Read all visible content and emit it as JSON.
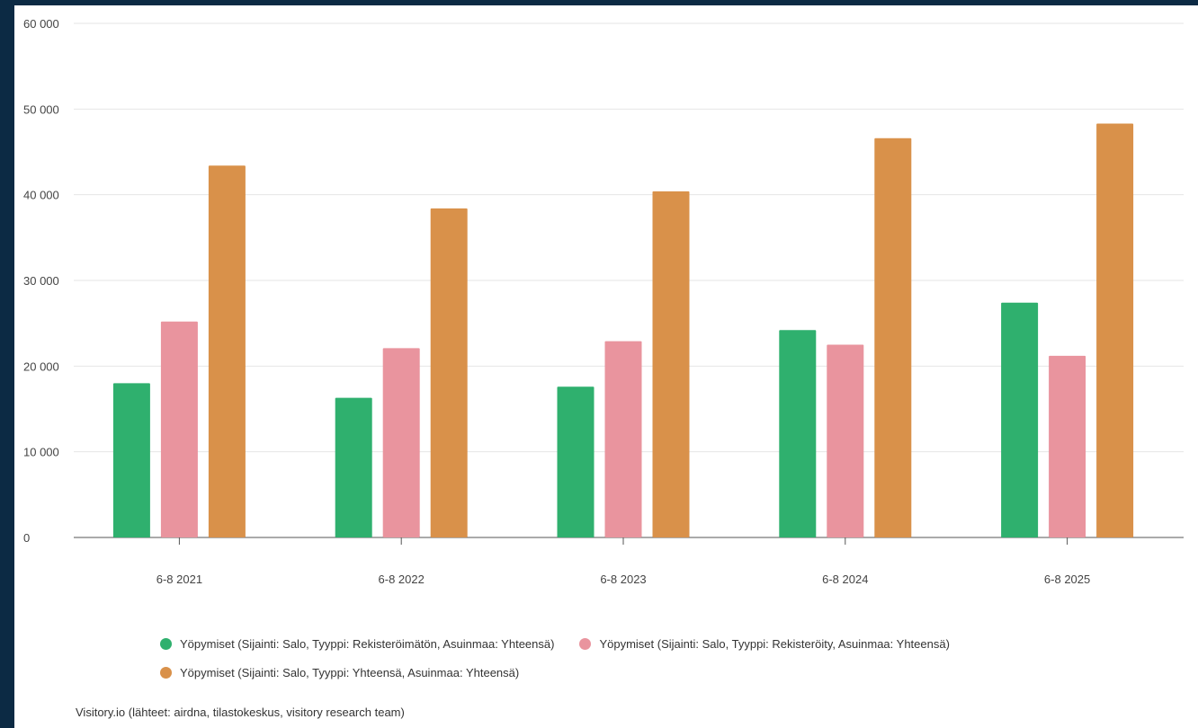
{
  "chart_data": {
    "type": "bar",
    "categories": [
      "6-8 2021",
      "6-8 2022",
      "6-8 2023",
      "6-8 2024",
      "6-8 2025"
    ],
    "series": [
      {
        "name": "Yöpymiset (Sijainti: Salo, Tyyppi: Rekisteröimätön, Asuinmaa: Yhteensä)",
        "color": "#2fb06e",
        "values": [
          18000,
          16300,
          17600,
          24200,
          27400
        ]
      },
      {
        "name": "Yöpymiset (Sijainti: Salo, Tyyppi: Rekisteröity, Asuinmaa: Yhteensä)",
        "color": "#e9949e",
        "values": [
          25200,
          22100,
          22900,
          22500,
          21200
        ]
      },
      {
        "name": "Yöpymiset (Sijainti: Salo, Tyyppi: Yhteensä, Asuinmaa: Yhteensä)",
        "color": "#d9914a",
        "values": [
          43400,
          38400,
          40400,
          46600,
          48300
        ]
      }
    ],
    "ylim": [
      0,
      60000
    ],
    "yticks": [
      0,
      10000,
      20000,
      30000,
      40000,
      50000,
      60000
    ],
    "ytick_labels": [
      "0",
      "10 000",
      "20 000",
      "30 000",
      "40 000",
      "50 000",
      "60 000"
    ],
    "xlabel": "",
    "ylabel": "",
    "grid": true,
    "legend_position": "bottom"
  },
  "source": "Visitory.io (lähteet: airdna, tilastokeskus, visitory research team)"
}
